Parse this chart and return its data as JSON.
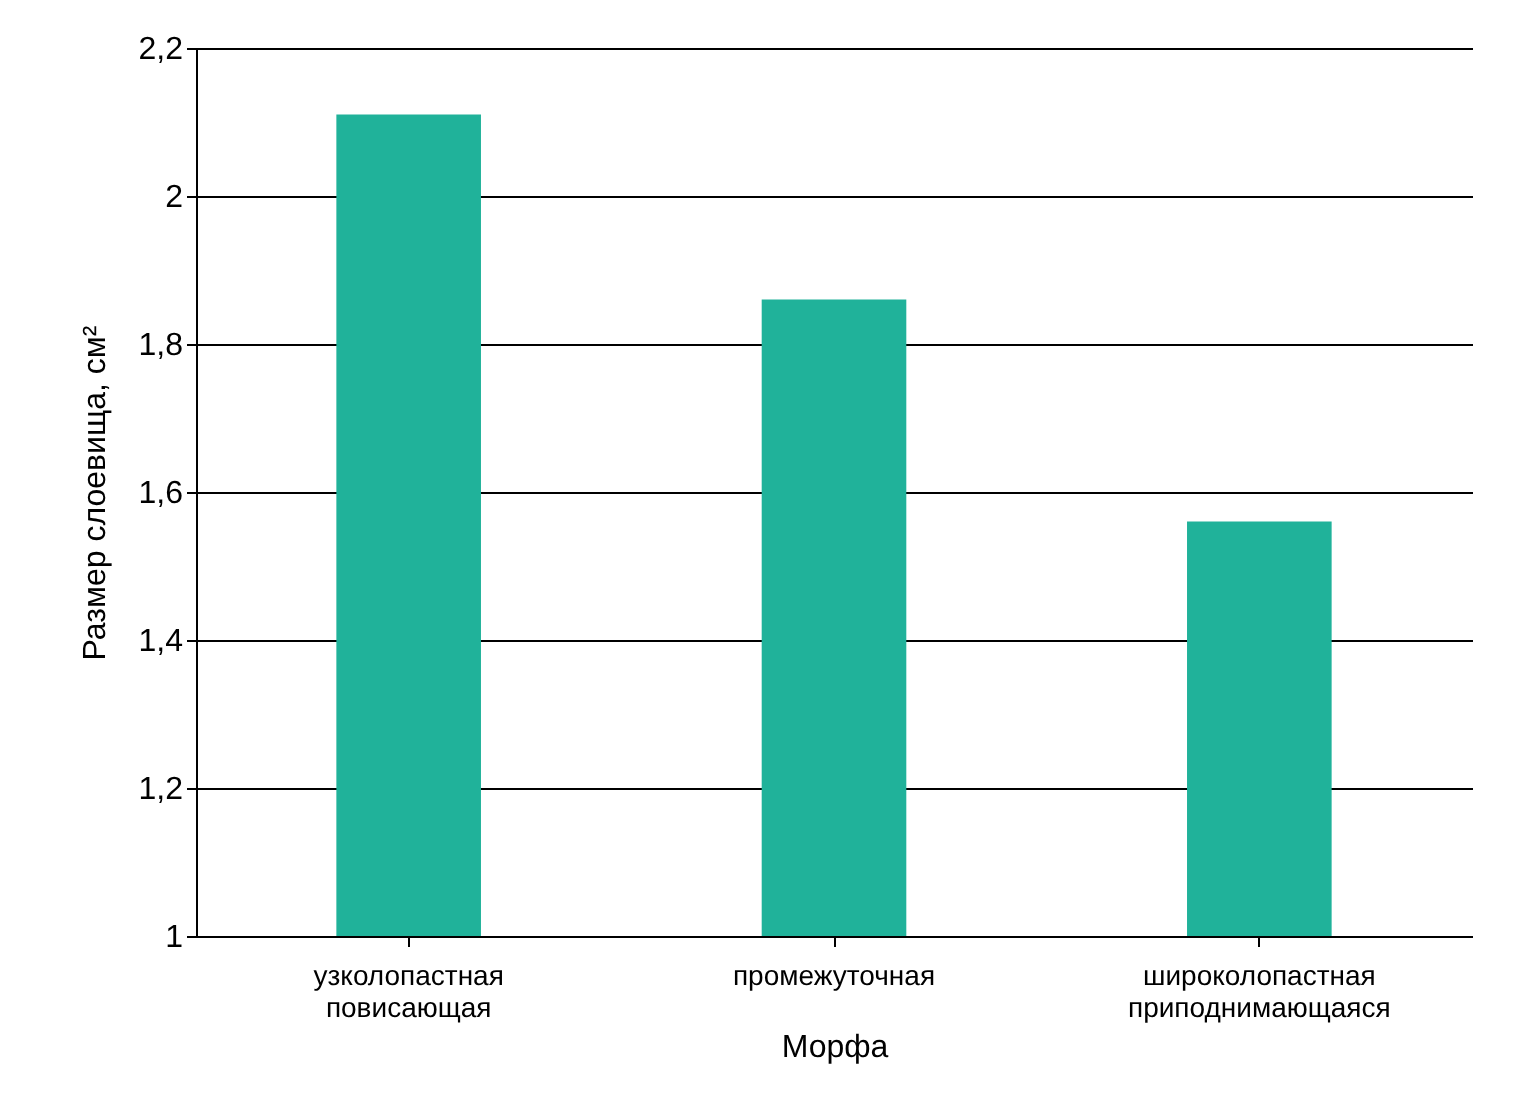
{
  "chart_data": {
    "type": "bar",
    "xlabel": "Морфа",
    "ylabel": "Размер слоевища, см²",
    "categories": [
      "узколопастная повисающая",
      "промежуточная",
      "широколопастная приподнимающаяся"
    ],
    "values": [
      2.11,
      1.86,
      1.56
    ],
    "color": "#20b29a",
    "ylim": [
      1,
      2.2
    ],
    "yticks": [
      {
        "value": 1,
        "label": "1"
      },
      {
        "value": 1.2,
        "label": "1,2"
      },
      {
        "value": 1.4,
        "label": "1,4"
      },
      {
        "value": 1.6,
        "label": "1,6"
      },
      {
        "value": 1.8,
        "label": "1,8"
      },
      {
        "value": 2,
        "label": "2"
      },
      {
        "value": 2.2,
        "label": "2,2"
      }
    ],
    "grid": "y"
  }
}
